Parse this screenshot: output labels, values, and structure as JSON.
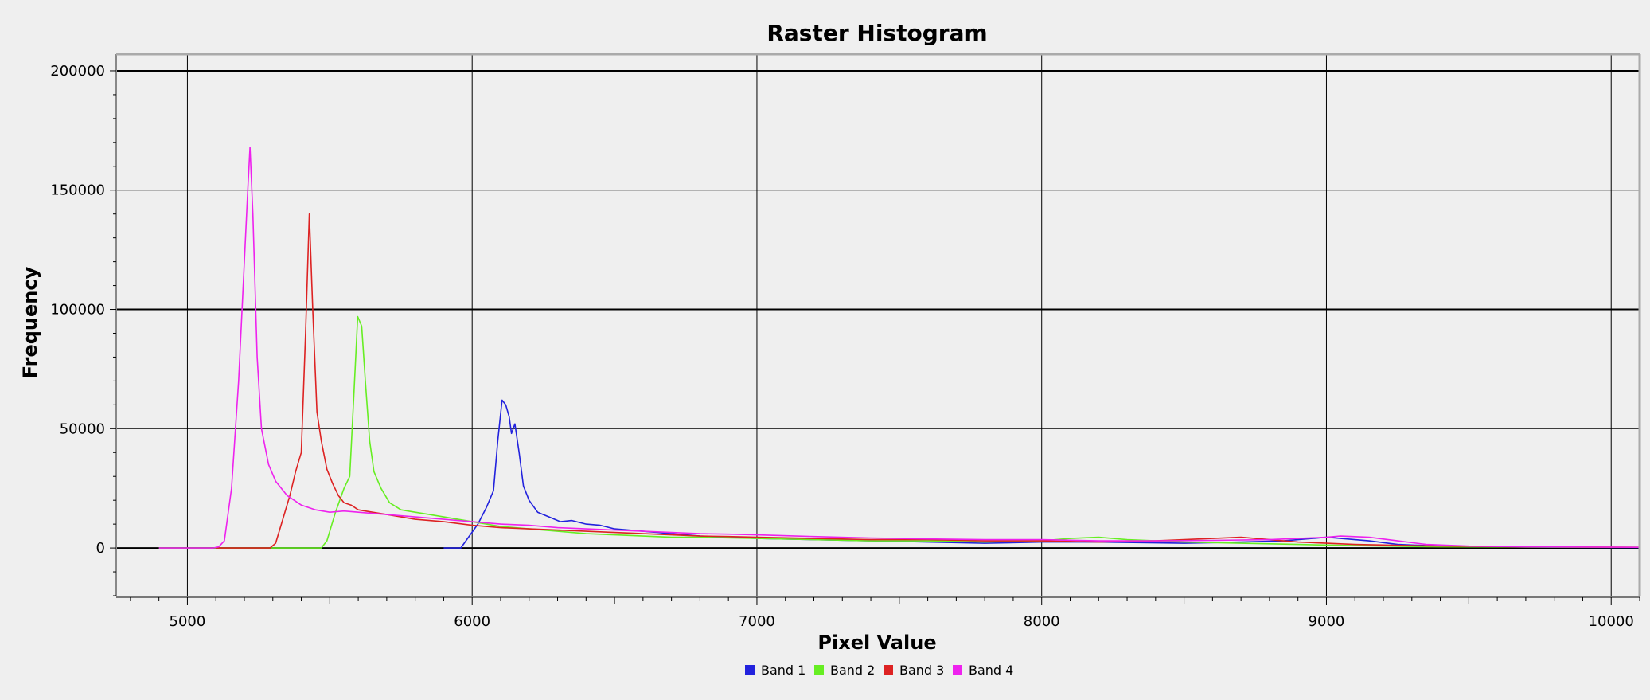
{
  "chart_data": {
    "type": "line",
    "title": "Raster Histogram",
    "xlabel": "Pixel Value",
    "ylabel": "Frequency",
    "xlim": [
      4750,
      10100
    ],
    "ylim": [
      -20000,
      207000
    ],
    "x_ticks": [
      5000,
      6000,
      7000,
      8000,
      9000,
      10000
    ],
    "y_ticks": [
      0,
      50000,
      100000,
      150000,
      200000
    ],
    "grid": true,
    "legend_position": "bottom-center",
    "series": [
      {
        "name": "Band 1",
        "color": "#2222dd",
        "points": [
          [
            5900,
            0
          ],
          [
            5960,
            0
          ],
          [
            5990,
            5000
          ],
          [
            6020,
            10000
          ],
          [
            6050,
            17000
          ],
          [
            6075,
            24000
          ],
          [
            6090,
            45000
          ],
          [
            6105,
            62000
          ],
          [
            6118,
            60000
          ],
          [
            6130,
            55000
          ],
          [
            6138,
            48000
          ],
          [
            6150,
            52000
          ],
          [
            6165,
            40000
          ],
          [
            6180,
            26000
          ],
          [
            6200,
            20000
          ],
          [
            6230,
            15000
          ],
          [
            6270,
            13000
          ],
          [
            6310,
            11000
          ],
          [
            6350,
            11500
          ],
          [
            6400,
            10000
          ],
          [
            6450,
            9500
          ],
          [
            6500,
            8000
          ],
          [
            6550,
            7500
          ],
          [
            6600,
            7000
          ],
          [
            6700,
            6000
          ],
          [
            6800,
            5000
          ],
          [
            6900,
            4500
          ],
          [
            7000,
            4000
          ],
          [
            7200,
            3500
          ],
          [
            7400,
            3000
          ],
          [
            7600,
            2500
          ],
          [
            7800,
            2000
          ],
          [
            8000,
            2500
          ],
          [
            8200,
            2500
          ],
          [
            8500,
            2000
          ],
          [
            8700,
            2500
          ],
          [
            8850,
            3000
          ],
          [
            8950,
            4000
          ],
          [
            9000,
            4500
          ],
          [
            9050,
            4000
          ],
          [
            9150,
            3000
          ],
          [
            9250,
            1500
          ],
          [
            9400,
            800
          ],
          [
            9600,
            500
          ],
          [
            9800,
            300
          ],
          [
            10100,
            200
          ]
        ]
      },
      {
        "name": "Band 2",
        "color": "#66ee22",
        "points": [
          [
            4900,
            0
          ],
          [
            5400,
            0
          ],
          [
            5470,
            0
          ],
          [
            5490,
            3000
          ],
          [
            5520,
            15000
          ],
          [
            5550,
            25000
          ],
          [
            5570,
            30000
          ],
          [
            5585,
            65000
          ],
          [
            5598,
            97000
          ],
          [
            5612,
            93000
          ],
          [
            5625,
            70000
          ],
          [
            5640,
            45000
          ],
          [
            5655,
            32000
          ],
          [
            5680,
            25000
          ],
          [
            5710,
            19000
          ],
          [
            5750,
            16000
          ],
          [
            5800,
            15000
          ],
          [
            5850,
            14000
          ],
          [
            5900,
            13000
          ],
          [
            6000,
            11000
          ],
          [
            6100,
            9000
          ],
          [
            6200,
            8000
          ],
          [
            6300,
            7000
          ],
          [
            6400,
            6000
          ],
          [
            6500,
            5500
          ],
          [
            6600,
            5000
          ],
          [
            6700,
            4500
          ],
          [
            6800,
            4500
          ],
          [
            7000,
            4000
          ],
          [
            7200,
            3500
          ],
          [
            7400,
            3000
          ],
          [
            7600,
            3000
          ],
          [
            7800,
            2500
          ],
          [
            8000,
            3000
          ],
          [
            8100,
            4000
          ],
          [
            8200,
            4500
          ],
          [
            8300,
            3500
          ],
          [
            8500,
            2500
          ],
          [
            8700,
            2000
          ],
          [
            8900,
            1500
          ],
          [
            9100,
            1000
          ],
          [
            9400,
            500
          ],
          [
            9700,
            400
          ],
          [
            10100,
            300
          ]
        ]
      },
      {
        "name": "Band 3",
        "color": "#dd2222",
        "points": [
          [
            5100,
            0
          ],
          [
            5290,
            0
          ],
          [
            5310,
            2000
          ],
          [
            5330,
            10000
          ],
          [
            5360,
            22000
          ],
          [
            5380,
            32000
          ],
          [
            5400,
            40000
          ],
          [
            5415,
            90000
          ],
          [
            5428,
            140000
          ],
          [
            5440,
            100000
          ],
          [
            5455,
            57000
          ],
          [
            5470,
            45000
          ],
          [
            5490,
            33000
          ],
          [
            5510,
            27000
          ],
          [
            5530,
            22000
          ],
          [
            5550,
            19000
          ],
          [
            5575,
            18000
          ],
          [
            5600,
            16000
          ],
          [
            5650,
            15000
          ],
          [
            5700,
            14000
          ],
          [
            5800,
            12000
          ],
          [
            5900,
            11000
          ],
          [
            6000,
            9500
          ],
          [
            6100,
            8500
          ],
          [
            6200,
            8000
          ],
          [
            6300,
            7500
          ],
          [
            6400,
            7000
          ],
          [
            6500,
            6500
          ],
          [
            6600,
            6000
          ],
          [
            6700,
            5500
          ],
          [
            6800,
            5000
          ],
          [
            6900,
            4800
          ],
          [
            7000,
            4500
          ],
          [
            7200,
            4000
          ],
          [
            7400,
            3500
          ],
          [
            7600,
            3500
          ],
          [
            7800,
            3000
          ],
          [
            8000,
            3000
          ],
          [
            8200,
            2500
          ],
          [
            8400,
            3000
          ],
          [
            8600,
            4000
          ],
          [
            8700,
            4500
          ],
          [
            8800,
            3500
          ],
          [
            8900,
            2500
          ],
          [
            9000,
            2000
          ],
          [
            9100,
            1500
          ],
          [
            9300,
            1000
          ],
          [
            9500,
            700
          ],
          [
            9700,
            500
          ],
          [
            10100,
            300
          ]
        ]
      },
      {
        "name": "Band 4",
        "color": "#ee22ee",
        "points": [
          [
            4900,
            0
          ],
          [
            5090,
            0
          ],
          [
            5110,
            500
          ],
          [
            5130,
            3000
          ],
          [
            5155,
            25000
          ],
          [
            5180,
            70000
          ],
          [
            5200,
            120000
          ],
          [
            5212,
            150000
          ],
          [
            5220,
            168000
          ],
          [
            5230,
            140000
          ],
          [
            5245,
            80000
          ],
          [
            5260,
            50000
          ],
          [
            5285,
            35000
          ],
          [
            5310,
            28000
          ],
          [
            5350,
            22000
          ],
          [
            5400,
            18000
          ],
          [
            5450,
            16000
          ],
          [
            5500,
            15000
          ],
          [
            5550,
            15500
          ],
          [
            5600,
            15000
          ],
          [
            5700,
            14000
          ],
          [
            5800,
            13000
          ],
          [
            5900,
            12000
          ],
          [
            6000,
            11000
          ],
          [
            6100,
            10000
          ],
          [
            6200,
            9500
          ],
          [
            6300,
            8500
          ],
          [
            6400,
            8000
          ],
          [
            6500,
            7500
          ],
          [
            6600,
            7000
          ],
          [
            6700,
            6500
          ],
          [
            6800,
            6000
          ],
          [
            6900,
            5800
          ],
          [
            7000,
            5500
          ],
          [
            7200,
            4800
          ],
          [
            7400,
            4200
          ],
          [
            7600,
            3800
          ],
          [
            7800,
            3500
          ],
          [
            8000,
            3500
          ],
          [
            8200,
            3000
          ],
          [
            8400,
            3000
          ],
          [
            8600,
            3200
          ],
          [
            8800,
            3500
          ],
          [
            8900,
            4000
          ],
          [
            9000,
            4500
          ],
          [
            9050,
            5000
          ],
          [
            9150,
            4500
          ],
          [
            9250,
            3000
          ],
          [
            9350,
            1500
          ],
          [
            9500,
            800
          ],
          [
            9700,
            500
          ],
          [
            10100,
            300
          ]
        ]
      }
    ]
  }
}
